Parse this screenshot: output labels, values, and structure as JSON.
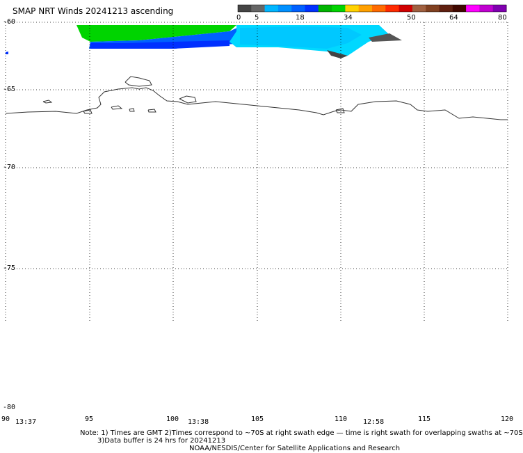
{
  "title": "SMAP NRT Winds 20241213 ascending",
  "colorbar": {
    "ticks": [
      "0",
      "5",
      "18",
      "34",
      "50",
      "64",
      "80"
    ],
    "segments": [
      "#444444",
      "#666666",
      "#00b6ff",
      "#0090ff",
      "#0060ff",
      "#0030ff",
      "#00b400",
      "#00d400",
      "#ffd200",
      "#ffa000",
      "#ff6a00",
      "#ff2a00",
      "#d00000",
      "#a06040",
      "#804020",
      "#602010",
      "#400800",
      "#ff00ff",
      "#c000d0",
      "#8000b0"
    ]
  },
  "lat_labels": [
    "-60",
    "-65",
    "-70",
    "-75",
    "-80"
  ],
  "lon_labels": [
    "90",
    "95",
    "100",
    "105",
    "110",
    "115",
    "120"
  ],
  "time_labels": [
    "13:37",
    "13:38",
    "12:58"
  ],
  "notes": {
    "line1": "Note: 1) Times are GMT 2)Times correspond to ~70S at right swath edge — time is right swath for overlapping swaths at ~70S",
    "line2": "3)Data buffer is 24 hrs for 20241213",
    "line3": "NOAA/NESDIS/Center for Satellite Applications and Research"
  }
}
